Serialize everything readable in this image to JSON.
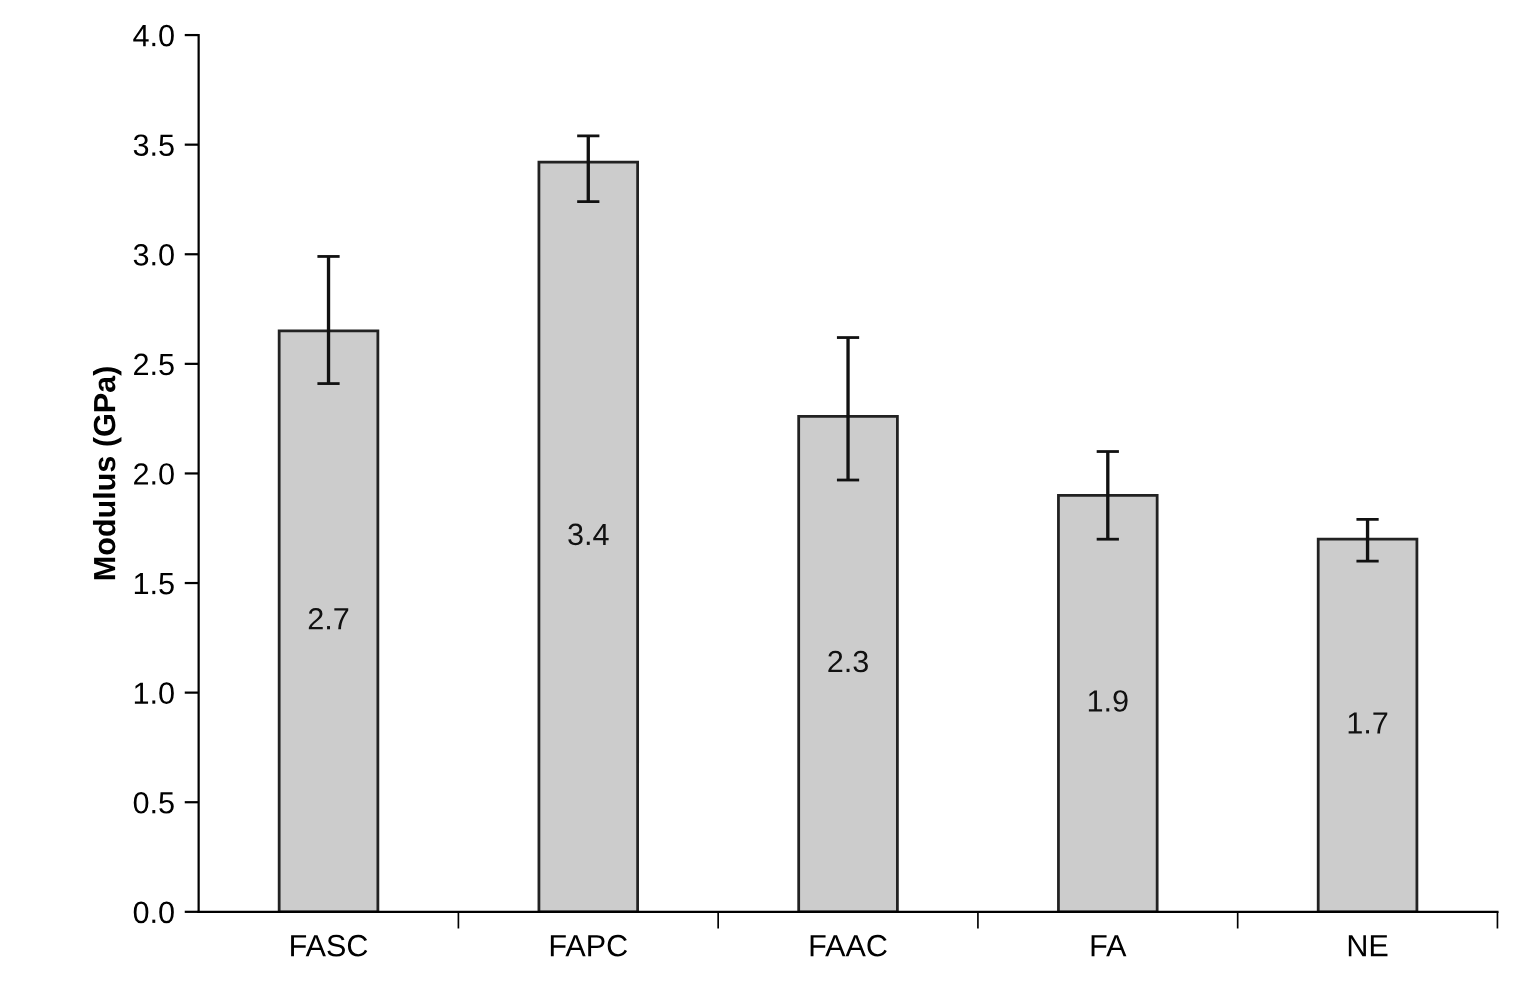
{
  "chart_data": {
    "type": "bar",
    "ylabel": "Modulus (GPa)",
    "categories": [
      "FASC",
      "FAPC",
      "FAAC",
      "FA",
      "NE"
    ],
    "values": [
      2.65,
      3.42,
      2.26,
      1.9,
      1.7
    ],
    "errors": [
      [
        2.41,
        2.99
      ],
      [
        3.24,
        3.54
      ],
      [
        1.97,
        2.62
      ],
      [
        1.7,
        2.1
      ],
      [
        1.6,
        1.79
      ]
    ],
    "value_labels": [
      "2.7",
      "3.4",
      "2.3",
      "1.9",
      "1.7"
    ],
    "color": "#cccccc",
    "ylim": [
      0,
      4.0
    ],
    "yticks": [
      {
        "value": 0,
        "label": "0.0"
      },
      0.5,
      {
        "value": 1,
        "label": "1.0"
      },
      1.5,
      {
        "value": 2,
        "label": "2.0"
      },
      2.5,
      {
        "value": 3,
        "label": "3.0"
      },
      3.5,
      {
        "value": 4,
        "label": "4.0"
      }
    ],
    "grid": false,
    "legend": false
  }
}
